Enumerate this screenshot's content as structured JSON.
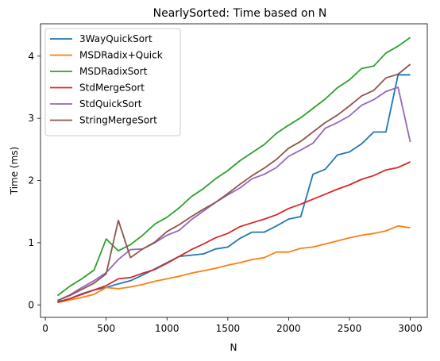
{
  "chart_data": {
    "type": "line",
    "title": "NearlySorted: Time based on N",
    "xlabel": "N",
    "ylabel": "Time (ms)",
    "xlim": [
      -40,
      3140
    ],
    "ylim": [
      -0.2,
      4.52
    ],
    "xticks": [
      0,
      500,
      1000,
      1500,
      2000,
      2500,
      3000
    ],
    "yticks": [
      0,
      1,
      2,
      3,
      4
    ],
    "legend_position": "top-left",
    "grid": false,
    "x": [
      100,
      200,
      300,
      400,
      500,
      600,
      700,
      800,
      900,
      1000,
      1100,
      1200,
      1300,
      1400,
      1500,
      1600,
      1700,
      1800,
      1900,
      2000,
      2100,
      2200,
      2300,
      2400,
      2500,
      2600,
      2700,
      2800,
      2900,
      3000
    ],
    "series": [
      {
        "name": "3WayQuickSort",
        "color": "#1f77b4",
        "values": [
          0.05,
          0.1,
          0.18,
          0.24,
          0.28,
          0.34,
          0.39,
          0.48,
          0.58,
          0.68,
          0.78,
          0.8,
          0.82,
          0.9,
          0.93,
          1.07,
          1.17,
          1.17,
          1.27,
          1.38,
          1.42,
          2.1,
          2.18,
          2.41,
          2.46,
          2.59,
          2.78,
          2.78,
          3.7,
          3.7
        ]
      },
      {
        "name": "MSDRadix+Quick",
        "color": "#ff7f0e",
        "values": [
          0.04,
          0.08,
          0.12,
          0.17,
          0.28,
          0.26,
          0.29,
          0.33,
          0.38,
          0.42,
          0.46,
          0.51,
          0.55,
          0.59,
          0.64,
          0.68,
          0.73,
          0.76,
          0.85,
          0.85,
          0.91,
          0.93,
          0.98,
          1.03,
          1.08,
          1.12,
          1.15,
          1.19,
          1.27,
          1.24
        ]
      },
      {
        "name": "MSDRadixSort",
        "color": "#2ca02c",
        "values": [
          0.15,
          0.3,
          0.42,
          0.56,
          1.06,
          0.87,
          0.97,
          1.12,
          1.3,
          1.41,
          1.56,
          1.74,
          1.87,
          2.03,
          2.16,
          2.32,
          2.45,
          2.58,
          2.76,
          2.89,
          3.01,
          3.16,
          3.31,
          3.49,
          3.62,
          3.8,
          3.84,
          4.05,
          4.16,
          4.3
        ]
      },
      {
        "name": "StdMergeSort",
        "color": "#d62728",
        "values": [
          0.04,
          0.1,
          0.17,
          0.24,
          0.31,
          0.42,
          0.44,
          0.51,
          0.57,
          0.67,
          0.78,
          0.89,
          0.98,
          1.08,
          1.15,
          1.26,
          1.32,
          1.38,
          1.45,
          1.55,
          1.62,
          1.7,
          1.78,
          1.86,
          1.93,
          2.02,
          2.08,
          2.17,
          2.21,
          2.3
        ]
      },
      {
        "name": "StdQuickSort",
        "color": "#9467bd",
        "values": [
          0.07,
          0.16,
          0.28,
          0.39,
          0.52,
          0.73,
          0.89,
          0.9,
          1.0,
          1.12,
          1.2,
          1.37,
          1.51,
          1.65,
          1.77,
          1.88,
          2.03,
          2.1,
          2.21,
          2.39,
          2.49,
          2.6,
          2.84,
          2.93,
          3.04,
          3.21,
          3.3,
          3.43,
          3.5,
          2.62
        ]
      },
      {
        "name": "StringMergeSort",
        "color": "#8c564b",
        "values": [
          0.07,
          0.15,
          0.25,
          0.35,
          0.5,
          1.36,
          0.76,
          0.9,
          1.01,
          1.18,
          1.29,
          1.42,
          1.54,
          1.65,
          1.79,
          1.94,
          2.08,
          2.2,
          2.34,
          2.52,
          2.63,
          2.78,
          2.93,
          3.05,
          3.2,
          3.36,
          3.45,
          3.65,
          3.71,
          3.87
        ]
      }
    ]
  }
}
